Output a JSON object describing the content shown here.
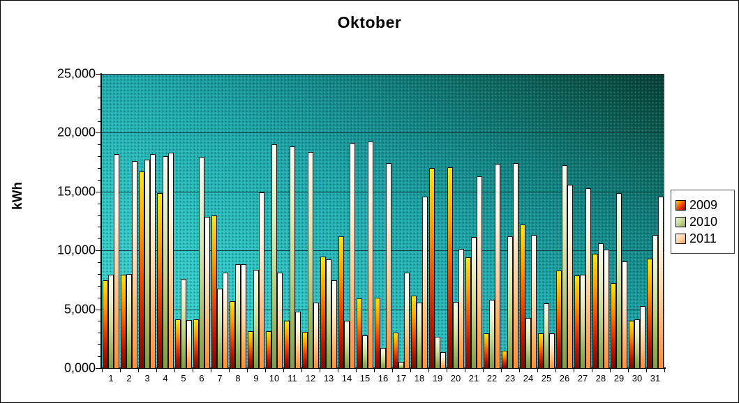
{
  "title": "Oktober",
  "y_axis": {
    "label": "kWh",
    "ticks": [
      "25,000",
      "20,000",
      "15,000",
      "10,000",
      "5,000",
      "0,000"
    ]
  },
  "legend": [
    {
      "label": "2009",
      "swatch_colors": [
        "#ffd400",
        "#f04000",
        "#8a0000"
      ]
    },
    {
      "label": "2010",
      "swatch_colors": [
        "#f2f8dc",
        "#c2d48c",
        "#8aa854"
      ]
    },
    {
      "label": "2011",
      "swatch_colors": [
        "#fff4e4",
        "#ffd0a0",
        "#ff9c50"
      ]
    }
  ],
  "chart_data": {
    "type": "bar",
    "title": "Oktober",
    "xlabel": "",
    "ylabel": "kWh",
    "ylim": [
      0,
      25000
    ],
    "gridline_step": 5000,
    "gridlines": [
      5000,
      10000,
      15000,
      20000
    ],
    "minor_tick_step": 1000,
    "legend_position": "right",
    "plot_background": "teal gradient, light bottom-left to dark top-right, dotted dither",
    "categories": [
      "1",
      "2",
      "3",
      "4",
      "5",
      "6",
      "7",
      "8",
      "9",
      "10",
      "11",
      "12",
      "13",
      "14",
      "15",
      "16",
      "17",
      "18",
      "19",
      "20",
      "21",
      "22",
      "23",
      "24",
      "25",
      "26",
      "27",
      "28",
      "29",
      "30",
      "31"
    ],
    "series": [
      {
        "name": "2009",
        "gradient": [
          "#ffe414",
          "#ffa000",
          "#f04800",
          "#b81400",
          "#7a0c00"
        ],
        "values": [
          7500,
          8000,
          16750,
          14950,
          4200,
          4200,
          13050,
          5750,
          3200,
          3200,
          4100,
          3150,
          9550,
          11250,
          6000,
          6050,
          3100,
          6200,
          17050,
          17100,
          9500,
          3000,
          1550,
          12250,
          3050,
          8350,
          7950,
          9750,
          7300,
          4100,
          9350
        ]
      },
      {
        "name": "2010",
        "gradient": [
          "#f8fcf0",
          "#e6eec4",
          "#c6d892",
          "#9cb662",
          "#7e9c4a"
        ],
        "values": [
          8000,
          8050,
          17800,
          18050,
          7650,
          18000,
          6800,
          8900,
          8400,
          19100,
          18900,
          18400,
          9300,
          4100,
          2850,
          1800,
          600,
          5650,
          2750,
          5700,
          11200,
          5850,
          11250,
          4350,
          5550,
          17300,
          8000,
          10650,
          14900,
          4200,
          11350
        ]
      },
      {
        "name": "2011",
        "gradient": [
          "#ffffff",
          "#fff2e0",
          "#ffd4a4",
          "#ffab62",
          "#ff8f3c"
        ],
        "values": [
          18250,
          17650,
          18250,
          18350,
          4150,
          12900,
          8200,
          8900,
          15000,
          8200,
          4850,
          5650,
          7550,
          19200,
          19300,
          17500,
          8150,
          14650,
          1400,
          10200,
          16350,
          17400,
          17450,
          11400,
          3000,
          15650,
          15350,
          10150,
          9100,
          5350,
          14650
        ]
      }
    ]
  }
}
